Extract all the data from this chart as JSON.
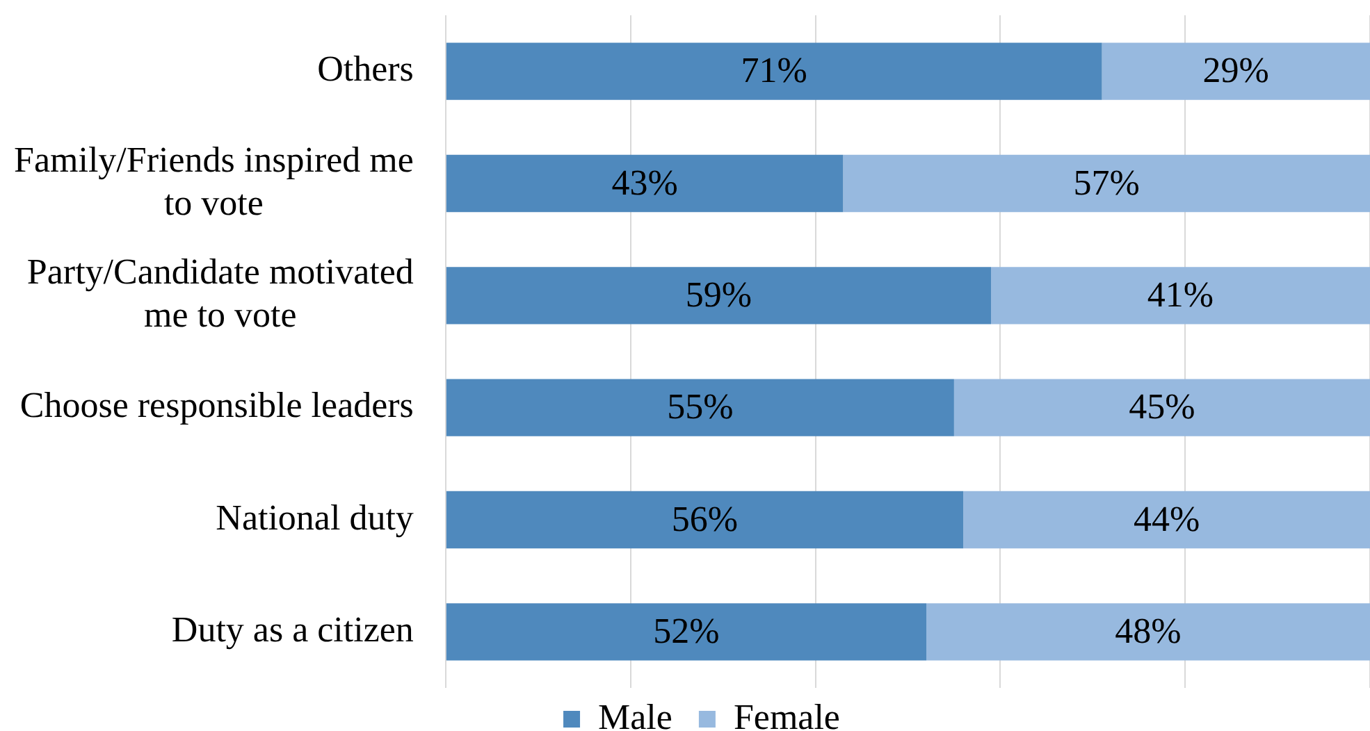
{
  "chart_data": {
    "type": "bar",
    "orientation": "horizontal",
    "stacked": true,
    "categories": [
      "Others",
      "Family/Friends inspired me to vote",
      "Party/Candidate motivated me to vote",
      "Choose responsible leaders",
      "National duty",
      "Duty as a citizen"
    ],
    "series": [
      {
        "name": "Male",
        "color": "#4f89bd",
        "values": [
          71,
          43,
          59,
          55,
          56,
          52
        ],
        "value_labels": [
          "71%",
          "43%",
          "59%",
          "55%",
          "56%",
          "52%"
        ]
      },
      {
        "name": "Female",
        "color": "#97b9df",
        "values": [
          29,
          57,
          41,
          45,
          44,
          48
        ],
        "value_labels": [
          "29%",
          "57%",
          "41%",
          "45%",
          "44%",
          "48%"
        ]
      }
    ],
    "xlim": [
      0,
      100
    ],
    "xticks": [
      0,
      20,
      40,
      60,
      80,
      100
    ],
    "grid": "x",
    "legend": "bottom",
    "tick_labels": "y"
  }
}
